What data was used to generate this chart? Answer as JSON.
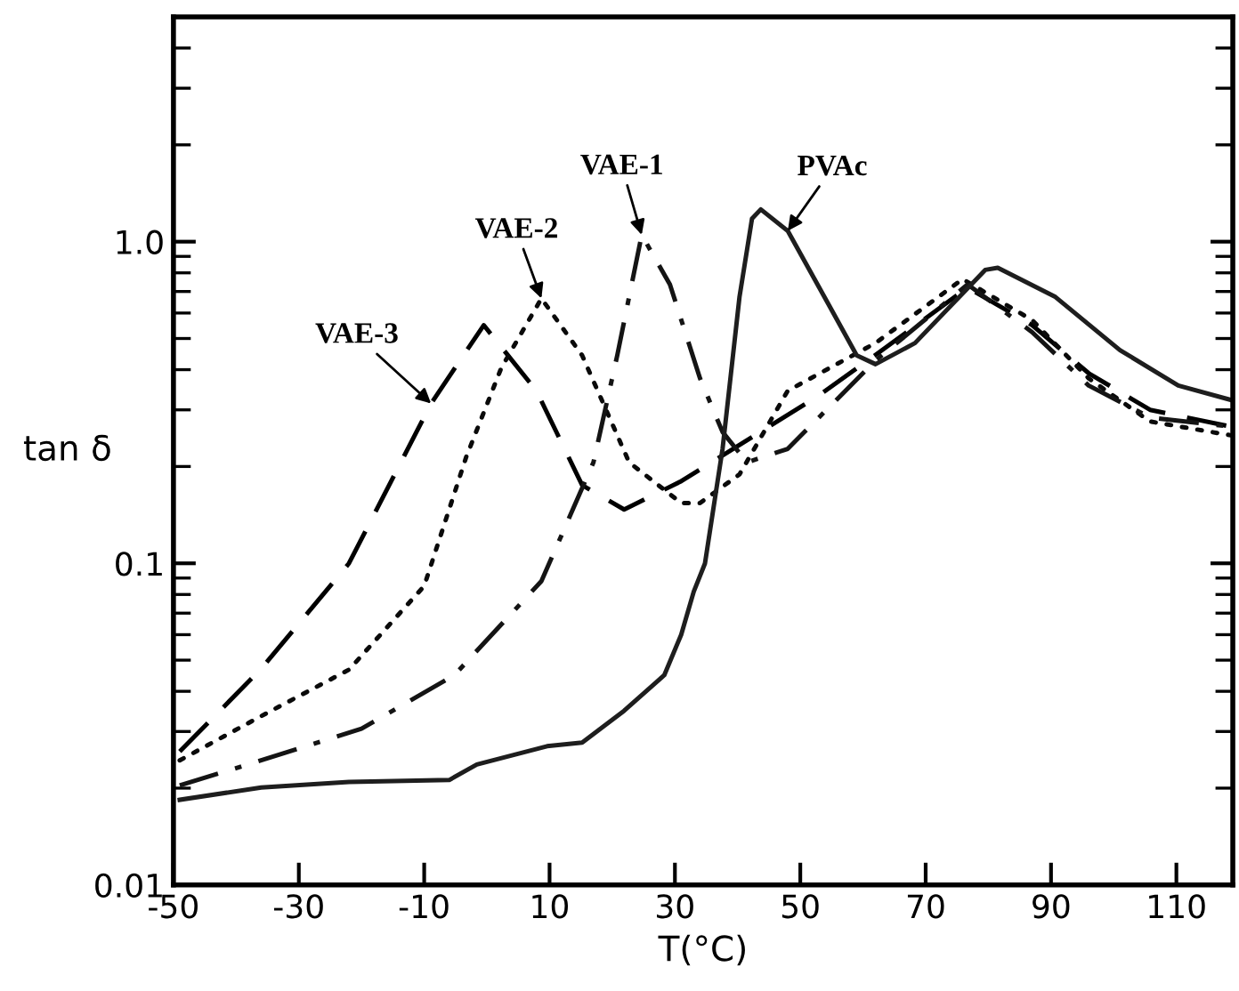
{
  "chart_data": {
    "type": "line",
    "xlabel": "T(°C)",
    "ylabel": "tan δ",
    "log": "y",
    "xlim": [
      -50,
      119
    ],
    "xticks": [
      -50,
      -30,
      -10,
      10,
      30,
      50,
      70,
      90,
      110
    ],
    "ylim": [
      0.01,
      5
    ],
    "yticks": [
      0.01,
      0.1,
      {
        "value": 1,
        "label": "1.0"
      }
    ],
    "grid": false,
    "marker": "none",
    "series": [
      {
        "color": "#000000",
        "line_style": "dashed",
        "x": [
          -49,
          -36,
          -22,
          -8.9,
          -0.5,
          7.9,
          15.2,
          21.9,
          31,
          52.7,
          61.9,
          76.7,
          87,
          96,
          105.8,
          118.7
        ],
        "values": [
          0.026,
          0.047,
          0.1,
          0.314,
          0.55,
          0.344,
          0.175,
          0.147,
          0.18,
          0.33,
          0.443,
          0.72,
          0.55,
          0.39,
          0.3,
          0.266
        ]
      },
      {
        "color": "#0a0a0a",
        "line_style": "dotted",
        "x": [
          -49,
          -36,
          -22,
          -10,
          -3.3,
          2.3,
          8.7,
          15.2,
          22.7,
          31,
          34,
          40.3,
          48,
          62,
          75.9,
          87,
          96,
          105.8,
          118.7
        ],
        "values": [
          0.0244,
          0.0335,
          0.0467,
          0.085,
          0.214,
          0.405,
          0.666,
          0.443,
          0.206,
          0.154,
          0.154,
          0.189,
          0.344,
          0.484,
          0.765,
          0.57,
          0.376,
          0.276,
          0.25
        ]
      },
      {
        "color": "#141414",
        "line_style": "dashdot",
        "x": [
          -49,
          -36,
          -20,
          -5.2,
          8.7,
          17,
          20.8,
          24.7,
          29.2,
          34,
          37.6,
          41.5,
          48,
          62,
          76.7,
          87,
          96,
          105.8,
          118.7
        ],
        "values": [
          0.0204,
          0.0244,
          0.0306,
          0.0449,
          0.088,
          0.206,
          0.443,
          1.05,
          0.736,
          0.376,
          0.256,
          0.206,
          0.227,
          0.427,
          0.736,
          0.523,
          0.357,
          0.284,
          0.266
        ]
      },
      {
        "color": "#1e1e1e",
        "line_style": "solid",
        "x": [
          -49,
          -36,
          -22,
          -6,
          -1.6,
          9.6,
          15.2,
          21.9,
          28.3,
          31,
          33,
          34.8,
          37.6,
          40.3,
          42.3,
          43.7,
          48,
          54.3,
          59,
          62,
          68.3,
          79.5,
          81.5,
          90.7,
          101,
          110.3,
          118.7
        ],
        "values": [
          0.0184,
          0.0201,
          0.0209,
          0.0212,
          0.0237,
          0.027,
          0.0277,
          0.0348,
          0.0449,
          0.06,
          0.0816,
          0.1,
          0.227,
          0.673,
          1.18,
          1.26,
          1.08,
          0.649,
          0.443,
          0.416,
          0.484,
          0.817,
          0.83,
          0.673,
          0.46,
          0.357,
          0.322
        ]
      }
    ],
    "annotations": [
      {
        "text": "VAE-3",
        "x": -8.9,
        "y": 0.314
      },
      {
        "text": "VAE-2",
        "x": 8.7,
        "y": 0.666
      },
      {
        "text": "VAE-1",
        "x": 24.7,
        "y": 1.05
      },
      {
        "text": "PVAc",
        "x": 48,
        "y": 1.08
      }
    ]
  }
}
